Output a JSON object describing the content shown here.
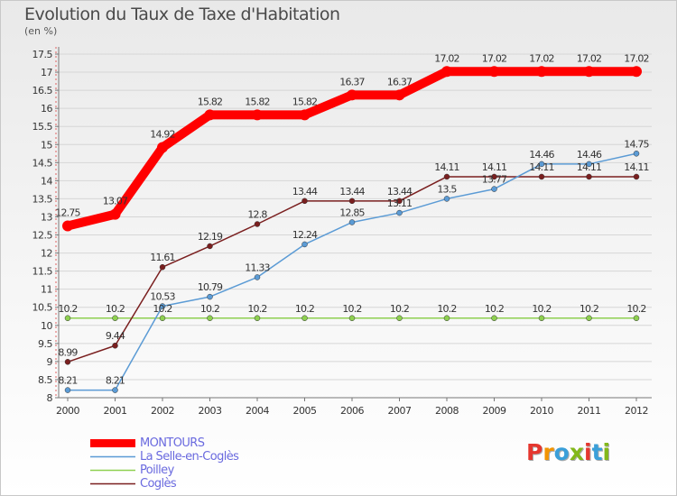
{
  "title": "Evolution du Taux de Taxe d'Habitation",
  "unit": "(en %)",
  "logo": {
    "text": "Proxiti",
    "colors": [
      "#e5372f",
      "#f29400",
      "#3a9fd9",
      "#83b81a",
      "#e5372f",
      "#3a9fd9",
      "#83b81a"
    ]
  },
  "chart_data": {
    "type": "line",
    "x": [
      "2000",
      "2001",
      "2002",
      "2003",
      "2004",
      "2005",
      "2006",
      "2007",
      "2008",
      "2009",
      "2010",
      "2011",
      "2012"
    ],
    "ylim": [
      8,
      17.5
    ],
    "yticks": [
      "8",
      "8.5",
      "9",
      "9.5",
      "10",
      "10.5",
      "11",
      "11.5",
      "12",
      "12.5",
      "13",
      "13.5",
      "14",
      "14.5",
      "15",
      "15.5",
      "16",
      "16.5",
      "17",
      "17.5"
    ],
    "grid": "horizontal",
    "legend_position": "bottom-left",
    "series": [
      {
        "name": "MONTOURS",
        "color": "#ff0000",
        "values": [
          12.75,
          13.07,
          14.92,
          15.82,
          15.82,
          15.82,
          16.37,
          16.37,
          17.02,
          17.02,
          17.02,
          17.02,
          17.02
        ],
        "labels": [
          "12.75",
          "13.07",
          "14.92",
          "15.82",
          "15.82",
          "15.82",
          "16.37",
          "16.37",
          "17.02",
          "17.02",
          "17.02",
          "17.02",
          "17.02"
        ]
      },
      {
        "name": "La Selle-en-Coglès",
        "color": "#5b9bd5",
        "values": [
          8.21,
          8.21,
          10.53,
          10.79,
          11.33,
          12.24,
          12.85,
          13.11,
          13.5,
          13.77,
          14.46,
          14.46,
          14.75
        ],
        "labels": [
          "8.21",
          "8.21",
          "10.53",
          "10.79",
          "11.33",
          "12.24",
          "12.85",
          "13.11",
          "13.5",
          "13.77",
          "14.46",
          "14.46",
          "14.75"
        ]
      },
      {
        "name": "Poilley",
        "color": "#8ed050",
        "values": [
          10.2,
          10.2,
          10.2,
          10.2,
          10.2,
          10.2,
          10.2,
          10.2,
          10.2,
          10.2,
          10.2,
          10.2,
          10.2
        ],
        "labels": [
          "10.2",
          "10.2",
          "10.2",
          "10.2",
          "10.2",
          "10.2",
          "10.2",
          "10.2",
          "10.2",
          "10.2",
          "10.2",
          "10.2",
          "10.2"
        ]
      },
      {
        "name": "Coglès",
        "color": "#7a1f1f",
        "values": [
          8.99,
          9.44,
          11.61,
          12.19,
          12.8,
          13.44,
          13.44,
          13.44,
          14.11,
          14.11,
          14.11,
          14.11,
          14.11
        ],
        "labels": [
          "8.99",
          "9.44",
          "11.61",
          "12.19",
          "12.8",
          "13.44",
          "13.44",
          "13.44",
          "14.11",
          "14.11",
          "14.11",
          "14.11",
          "14.11"
        ]
      }
    ]
  }
}
